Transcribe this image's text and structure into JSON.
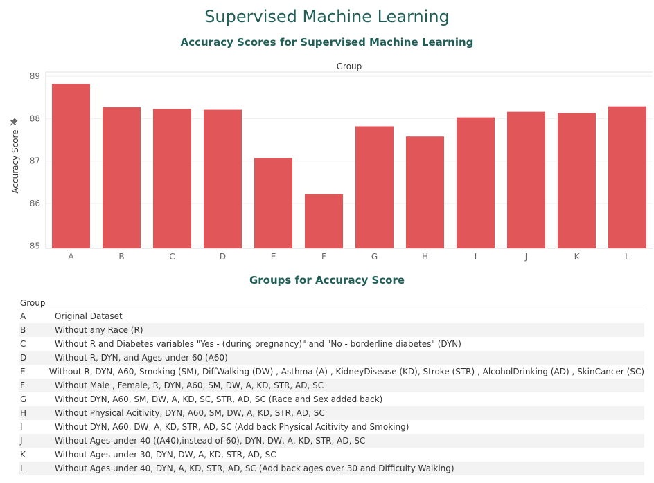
{
  "dashboard": {
    "title": "Supervised Machine Learning"
  },
  "chart_data": {
    "type": "bar",
    "title": "Accuracy Scores for Supervised Machine Learning",
    "column_header": "Group",
    "ylabel": "Accuracy Score",
    "xlabel": "",
    "categories": [
      "A",
      "B",
      "C",
      "D",
      "E",
      "F",
      "G",
      "H",
      "I",
      "J",
      "K",
      "L"
    ],
    "values": [
      88.82,
      88.27,
      88.23,
      88.21,
      87.07,
      86.22,
      87.82,
      87.58,
      88.03,
      88.16,
      88.13,
      88.29
    ],
    "yticks": [
      85,
      86,
      87,
      88,
      89
    ],
    "ylim": [
      84.94,
      89.1
    ],
    "bar_color": "#e15759",
    "grid": true
  },
  "groups_table": {
    "title": "Groups for Accuracy Score",
    "header": "Group",
    "rows": [
      {
        "group": "A",
        "description": "Original Dataset"
      },
      {
        "group": "B",
        "description": "Without any Race (R)"
      },
      {
        "group": "C",
        "description": "Without R and Diabetes variables \"Yes - (during pregnancy)\" and \"No - borderline diabetes\" (DYN)"
      },
      {
        "group": "D",
        "description": "Without R, DYN, and Ages under 60 (A60)"
      },
      {
        "group": "E",
        "description": "Without R, DYN, A60, Smoking (SM), DiffWalking (DW) , Asthma (A) , KidneyDisease (KD), Stroke (STR) , AlcoholDrinking (AD) , SkinCancer (SC)"
      },
      {
        "group": "F",
        "description": "Without Male , Female, R, DYN, A60, SM, DW, A, KD, STR, AD, SC"
      },
      {
        "group": "G",
        "description": "Without DYN, A60, SM, DW, A, KD, SC, STR, AD, SC (Race and Sex added back)"
      },
      {
        "group": "H",
        "description": "Without Physical Acitivity, DYN, A60, SM, DW, A, KD, STR, AD, SC"
      },
      {
        "group": "I",
        "description": "Without DYN, A60, DW, A, KD, STR, AD, SC (Add back Physical Acitivity and Smoking)"
      },
      {
        "group": "J",
        "description": "Without Ages under 40 ((A40),instead of 60), DYN, DW, A, KD, STR, AD, SC"
      },
      {
        "group": "K",
        "description": "Without Ages under 30, DYN, DW, A, KD, STR, AD, SC"
      },
      {
        "group": "L",
        "description": "Without Ages under 40, DYN, A, KD, STR, AD, SC (Add back ages over 30 and Difficulty Walking)"
      }
    ]
  }
}
